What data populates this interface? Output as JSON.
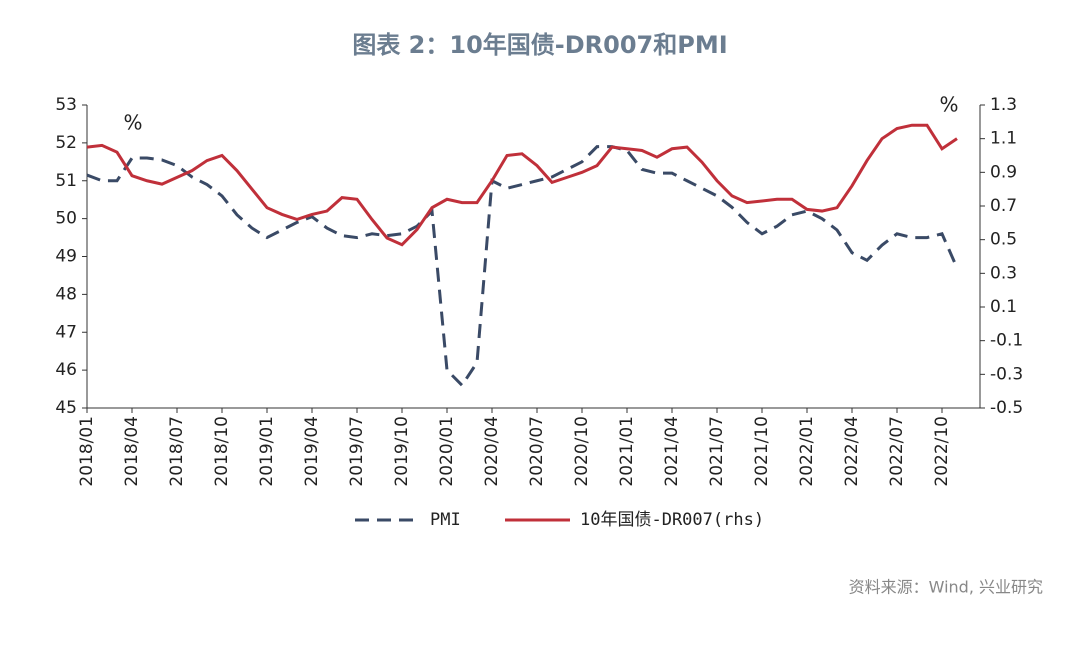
{
  "chart_data": {
    "type": "line",
    "title": "图表 2：10年国债-DR007和PMI",
    "y_unit": "%",
    "y2_unit": "%",
    "source": "资料来源：Wind, 兴业研究",
    "categories": [
      "2018/01",
      null,
      null,
      "2018/04",
      null,
      null,
      "2018/07",
      null,
      null,
      "2018/10",
      null,
      null,
      "2019/01",
      null,
      null,
      "2019/04",
      null,
      null,
      "2019/07",
      null,
      null,
      "2019/10",
      null,
      null,
      "2020/01",
      null,
      null,
      "2020/04",
      null,
      null,
      "2020/07",
      null,
      null,
      "2020/10",
      null,
      null,
      "2021/01",
      null,
      null,
      "2021/04",
      null,
      null,
      "2021/07",
      null,
      null,
      "2021/10",
      null,
      null,
      "2022/01",
      null,
      null,
      "2022/04",
      null,
      null,
      "2022/07",
      null,
      null,
      "2022/10",
      null
    ],
    "series": [
      {
        "name": "PMI",
        "color": "#3a4a66",
        "dash": true,
        "values": [
          51.15,
          51.0,
          51.0,
          51.6,
          51.6,
          51.55,
          51.4,
          51.1,
          50.9,
          50.6,
          50.1,
          49.75,
          49.5,
          49.7,
          49.9,
          50.05,
          49.75,
          49.55,
          49.5,
          49.6,
          49.55,
          49.6,
          49.8,
          50.2,
          46.0,
          45.6,
          46.2,
          51.0,
          50.8,
          50.9,
          51.0,
          51.1,
          51.3,
          51.5,
          51.9,
          51.9,
          51.8,
          51.3,
          51.2,
          51.2,
          51.0,
          50.8,
          50.6,
          50.3,
          49.9,
          49.6,
          49.8,
          50.1,
          50.2,
          50.0,
          49.7,
          49.1,
          48.9,
          49.3,
          49.6,
          49.5,
          49.5,
          49.6,
          48.7
        ]
      },
      {
        "name": "10年国债-DR007(rhs)",
        "color": "#c0303a",
        "axis": "y2",
        "values": [
          1.05,
          1.06,
          1.02,
          0.88,
          0.85,
          0.83,
          0.87,
          0.91,
          0.97,
          1.0,
          0.91,
          0.8,
          0.69,
          0.65,
          0.62,
          0.65,
          0.67,
          0.75,
          0.74,
          0.62,
          0.51,
          0.47,
          0.56,
          0.69,
          0.74,
          0.72,
          0.72,
          0.85,
          1.0,
          1.01,
          0.94,
          0.84,
          0.87,
          0.9,
          0.94,
          1.05,
          1.04,
          1.03,
          0.99,
          1.04,
          1.05,
          0.96,
          0.85,
          0.76,
          0.72,
          0.73,
          0.74,
          0.74,
          0.68,
          0.67,
          0.69,
          0.82,
          0.97,
          1.1,
          1.16,
          1.18,
          1.18,
          1.04,
          1.1
        ]
      }
    ],
    "ylim": [
      45,
      53
    ],
    "yticks": [
      45,
      46,
      47,
      48,
      49,
      50,
      51,
      52,
      53
    ],
    "y2lim": [
      -0.5,
      1.3
    ],
    "y2ticks": [
      1.3,
      1.1,
      0.9,
      0.7,
      0.5,
      0.3,
      0.1,
      -0.1,
      -0.3,
      -0.5
    ]
  }
}
